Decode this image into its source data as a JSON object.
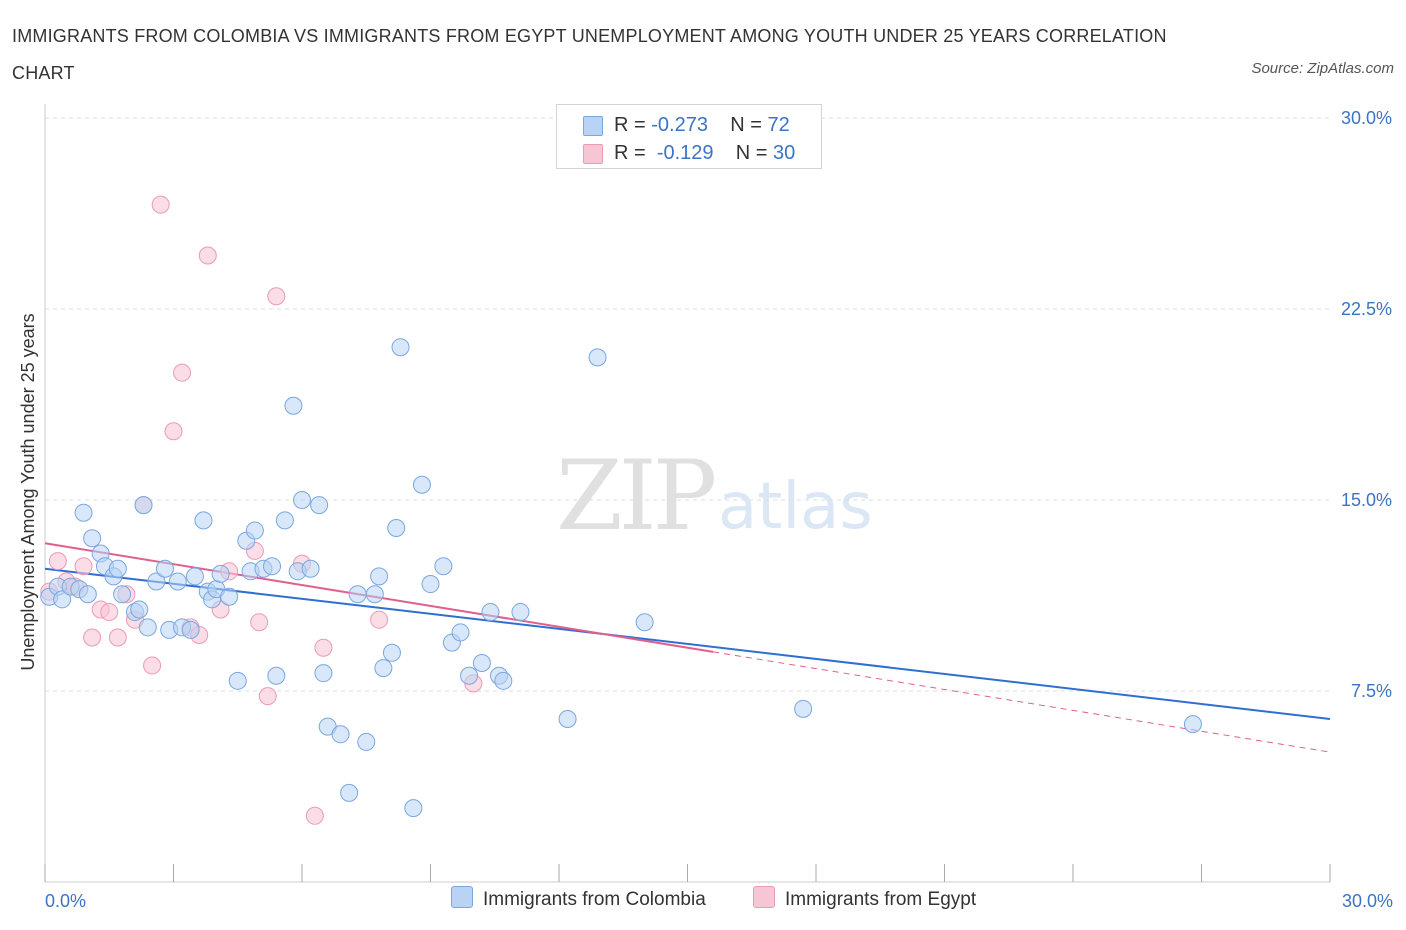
{
  "title": "IMMIGRANTS FROM COLOMBIA VS IMMIGRANTS FROM EGYPT UNEMPLOYMENT AMONG YOUTH UNDER 25 YEARS CORRELATION CHART",
  "source": "Source: ZipAtlas.com",
  "watermark": {
    "zip": "ZIP",
    "atlas": "atlas"
  },
  "legend": {
    "rows": [
      {
        "r_label": "R = ",
        "r_value": "-0.273",
        "n_label": "N = ",
        "n_value": "72"
      },
      {
        "r_label": "R = ",
        "r_value": "-0.129",
        "n_label": "N = ",
        "n_value": "30"
      }
    ]
  },
  "bottom_legend": {
    "colombia": "Immigrants from Colombia",
    "egypt": "Immigrants from Egypt"
  },
  "colors": {
    "colombia_fill": "#b8d3f4",
    "colombia_stroke": "#7aa7e0",
    "colombia_line": "#2f6fd0",
    "egypt_fill": "#f7c6d5",
    "egypt_stroke": "#ec9bb4",
    "egypt_line": "#e0608c",
    "tick": "#3a74c4",
    "grid": "#dedede"
  },
  "chart_data": {
    "type": "scatter",
    "title": "IMMIGRANTS FROM COLOMBIA VS IMMIGRANTS FROM EGYPT UNEMPLOYMENT AMONG YOUTH UNDER 25 YEARS CORRELATION CHART",
    "xlabel": "",
    "ylabel": "Unemployment Among Youth under 25 years",
    "xlim": [
      0,
      30
    ],
    "ylim": [
      0,
      30
    ],
    "x_tick_labels": [
      "0.0%",
      "30.0%"
    ],
    "y_ticks": [
      7.5,
      15.0,
      22.5,
      30.0
    ],
    "y_tick_labels": [
      "7.5%",
      "15.0%",
      "22.5%",
      "30.0%"
    ],
    "grid": true,
    "legend_position": "top-center",
    "series": [
      {
        "name": "Immigrants from Colombia",
        "stats": {
          "R": -0.273,
          "N": 72
        },
        "trend": {
          "x": [
            0,
            30
          ],
          "y": [
            12.3,
            6.4
          ]
        },
        "points": [
          [
            0.1,
            11.2
          ],
          [
            0.3,
            11.6
          ],
          [
            0.4,
            11.1
          ],
          [
            0.6,
            11.6
          ],
          [
            0.8,
            11.5
          ],
          [
            0.9,
            14.5
          ],
          [
            1.0,
            11.3
          ],
          [
            1.1,
            13.5
          ],
          [
            1.3,
            12.9
          ],
          [
            1.4,
            12.4
          ],
          [
            1.6,
            12.0
          ],
          [
            1.7,
            12.3
          ],
          [
            1.8,
            11.3
          ],
          [
            2.1,
            10.6
          ],
          [
            2.2,
            10.7
          ],
          [
            2.3,
            14.8
          ],
          [
            2.4,
            10.0
          ],
          [
            2.6,
            11.8
          ],
          [
            2.8,
            12.3
          ],
          [
            2.9,
            9.9
          ],
          [
            3.1,
            11.8
          ],
          [
            3.2,
            10.0
          ],
          [
            3.4,
            9.9
          ],
          [
            3.5,
            12.0
          ],
          [
            3.7,
            14.2
          ],
          [
            3.8,
            11.4
          ],
          [
            3.9,
            11.1
          ],
          [
            4.0,
            11.5
          ],
          [
            4.1,
            12.1
          ],
          [
            4.3,
            11.2
          ],
          [
            4.5,
            7.9
          ],
          [
            4.7,
            13.4
          ],
          [
            4.8,
            12.2
          ],
          [
            4.9,
            13.8
          ],
          [
            5.1,
            12.3
          ],
          [
            5.3,
            12.4
          ],
          [
            5.4,
            8.1
          ],
          [
            5.6,
            14.2
          ],
          [
            5.8,
            18.7
          ],
          [
            5.9,
            12.2
          ],
          [
            6.0,
            15.0
          ],
          [
            6.2,
            12.3
          ],
          [
            6.4,
            14.8
          ],
          [
            6.5,
            8.2
          ],
          [
            6.6,
            6.1
          ],
          [
            6.9,
            5.8
          ],
          [
            7.1,
            3.5
          ],
          [
            7.3,
            11.3
          ],
          [
            7.5,
            5.5
          ],
          [
            7.7,
            11.3
          ],
          [
            7.8,
            12.0
          ],
          [
            7.9,
            8.4
          ],
          [
            8.1,
            9.0
          ],
          [
            8.2,
            13.9
          ],
          [
            8.3,
            21.0
          ],
          [
            8.6,
            2.9
          ],
          [
            8.8,
            15.6
          ],
          [
            9.0,
            11.7
          ],
          [
            9.3,
            12.4
          ],
          [
            9.5,
            9.4
          ],
          [
            9.7,
            9.8
          ],
          [
            9.9,
            8.1
          ],
          [
            10.2,
            8.6
          ],
          [
            10.4,
            10.6
          ],
          [
            10.6,
            8.1
          ],
          [
            10.7,
            7.9
          ],
          [
            11.1,
            10.6
          ],
          [
            12.2,
            6.4
          ],
          [
            12.9,
            20.6
          ],
          [
            14.0,
            10.2
          ],
          [
            17.7,
            6.8
          ],
          [
            26.8,
            6.2
          ]
        ]
      },
      {
        "name": "Immigrants from Egypt",
        "stats": {
          "R": -0.129,
          "N": 30
        },
        "trend": {
          "x": [
            0,
            30
          ],
          "y": [
            13.3,
            5.1
          ]
        },
        "points": [
          [
            0.1,
            11.4
          ],
          [
            0.3,
            12.6
          ],
          [
            0.5,
            11.8
          ],
          [
            0.7,
            11.6
          ],
          [
            0.9,
            12.4
          ],
          [
            1.1,
            9.6
          ],
          [
            1.3,
            10.7
          ],
          [
            1.5,
            10.6
          ],
          [
            1.7,
            9.6
          ],
          [
            1.9,
            11.3
          ],
          [
            2.1,
            10.3
          ],
          [
            2.3,
            14.8
          ],
          [
            2.5,
            8.5
          ],
          [
            2.7,
            26.6
          ],
          [
            3.0,
            17.7
          ],
          [
            3.2,
            20.0
          ],
          [
            3.4,
            10.0
          ],
          [
            3.6,
            9.7
          ],
          [
            3.8,
            24.6
          ],
          [
            4.1,
            10.7
          ],
          [
            4.3,
            12.2
          ],
          [
            4.9,
            13.0
          ],
          [
            5.0,
            10.2
          ],
          [
            5.2,
            7.3
          ],
          [
            5.4,
            23.0
          ],
          [
            6.0,
            12.5
          ],
          [
            6.5,
            9.2
          ],
          [
            6.3,
            2.6
          ],
          [
            7.8,
            10.3
          ],
          [
            10.0,
            7.8
          ]
        ]
      }
    ]
  }
}
